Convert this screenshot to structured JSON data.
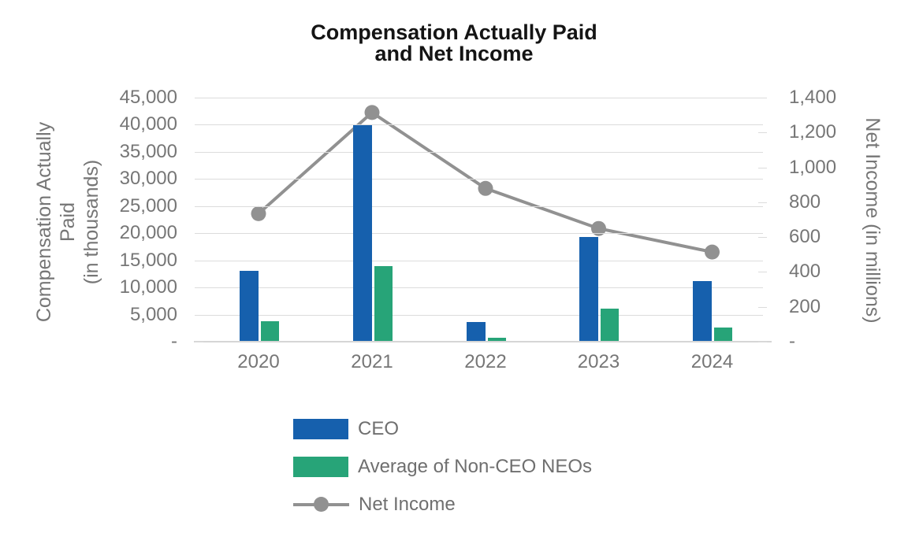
{
  "chart_data": {
    "type": "combo",
    "title": "Compensation Actually Paid and Net Income",
    "title_lines": [
      "Compensation Actually Paid",
      "and Net Income"
    ],
    "categories": [
      "2020",
      "2021",
      "2022",
      "2023",
      "2024"
    ],
    "series": [
      {
        "name": "CEO",
        "type": "bar",
        "axis": "left",
        "color": "#1660AD",
        "values": [
          12900,
          39800,
          3500,
          19200,
          11000
        ]
      },
      {
        "name": "Average of Non-CEO NEOs",
        "type": "bar",
        "axis": "left",
        "color": "#27A478",
        "values": [
          3600,
          13800,
          600,
          5900,
          2400
        ]
      },
      {
        "name": "Net Income",
        "type": "line",
        "axis": "right",
        "color": "#919191",
        "values": [
          730,
          1310,
          875,
          645,
          510
        ]
      }
    ],
    "left_axis": {
      "label": "Compensation Actually Paid (in thousands)",
      "label_lines": [
        "Compensation Actually",
        "Paid",
        "(in thousands)"
      ],
      "ticks": [
        "45,000",
        "40,000",
        "35,000",
        "30,000",
        "25,000",
        "20,000",
        "15,000",
        "10,000",
        "5,000",
        "-"
      ],
      "min": 0,
      "max": 45000
    },
    "right_axis": {
      "label": "Net Income (in millions)",
      "ticks": [
        "1,400",
        "1,200",
        "1,000",
        "800",
        "600",
        "400",
        "200",
        "-"
      ],
      "min": 0,
      "max": 1400
    },
    "grid": true,
    "legend_position": "bottom-left",
    "colors": {
      "gridline": "#dcdcdc",
      "axis_line": "#d6d6d6",
      "tick_text": "#767676",
      "title_text": "#141414"
    }
  }
}
